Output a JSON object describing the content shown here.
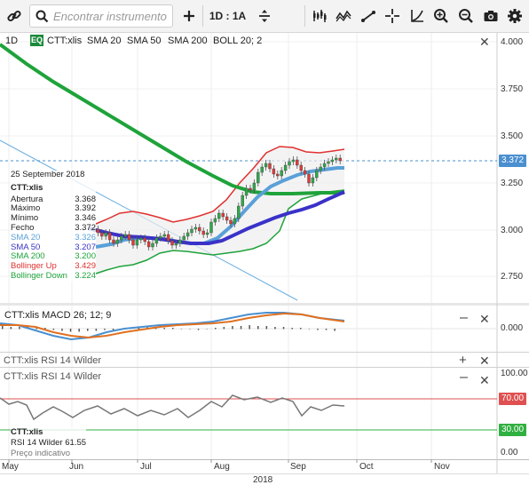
{
  "toolbar": {
    "search_placeholder": "Encontrar instrumento",
    "period_label": "1D : 1A",
    "icons": [
      "link-icon",
      "search-icon",
      "add-icon",
      "compare-icon",
      "indicators-icon",
      "drawing-icon",
      "trendline-icon",
      "crosshair-icon",
      "fib-icon",
      "zoom-in-icon",
      "zoom-out-icon",
      "camera-icon",
      "settings-icon"
    ]
  },
  "main_panel": {
    "interval": "1D",
    "eq_badge": "EQ",
    "symbol": "CTT:xlis",
    "legend": [
      {
        "label": "SMA 20",
        "color": "#5aa0d8"
      },
      {
        "label": "SMA 50",
        "color": "#3a32c8"
      },
      {
        "label": "SMA 200",
        "color": "#1ea33a"
      },
      {
        "label": "BOLL 20; 2",
        "color": "#222222"
      }
    ],
    "y_ticks": [
      "4.000",
      "3.750",
      "3.500",
      "3.250",
      "3.000",
      "2.750"
    ],
    "last_price": "3.372"
  },
  "tooltip": {
    "date": "25 September 2018",
    "symbol": "CTT:xlis",
    "rows": [
      {
        "label": "Abertura",
        "value": "3.368",
        "color": "#222222"
      },
      {
        "label": "Máximo",
        "value": "3.392",
        "color": "#222222"
      },
      {
        "label": "Mínimo",
        "value": "3.346",
        "color": "#222222"
      },
      {
        "label": "Fecho",
        "value": "3.372",
        "color": "#222222"
      },
      {
        "label": "SMA 20",
        "value": "3.326",
        "color": "#5aa0d8"
      },
      {
        "label": "SMA 50",
        "value": "3.207",
        "color": "#3a32c8"
      },
      {
        "label": "SMA 200",
        "value": "3.200",
        "color": "#1ea33a"
      },
      {
        "label": "Bollinger Up",
        "value": "3.429",
        "color": "#e03030"
      },
      {
        "label": "Bollinger Down",
        "value": "3.224",
        "color": "#1ea33a"
      }
    ]
  },
  "macd_panel": {
    "label": "CTT:xlis  MACD 26; 12; 9",
    "y_tick": "0.000"
  },
  "rsi_collapsed": {
    "label": "CTT:xlis  RSI 14 Wilder"
  },
  "rsi_panel": {
    "label": "CTT:xlis  RSI 14 Wilder",
    "y_ticks": [
      "100.00",
      "70.00",
      "30.00",
      "0.00"
    ],
    "upper_level": "70.00",
    "lower_level": "30.00",
    "tip_symbol": "CTT:xlis",
    "tip_value_label": "RSI 14 Wilder",
    "tip_value": "61.55",
    "tip_footer": "Preço indicativo"
  },
  "x_axis": {
    "months": [
      "May",
      "Jun",
      "Jul",
      "Aug",
      "Sep",
      "Oct",
      "Nov"
    ],
    "year": "2018"
  },
  "colors": {
    "sma20": "#5aa0d8",
    "sma50": "#3a32c8",
    "sma200": "#1ea33a",
    "boll_up": "#e03030",
    "boll_down": "#1ea33a",
    "price_tag": "#4a8fd0",
    "rsi_70": "#e05050",
    "rsi_30": "#30b040",
    "macd": "#4a90d0",
    "signal": "#e07020"
  }
}
